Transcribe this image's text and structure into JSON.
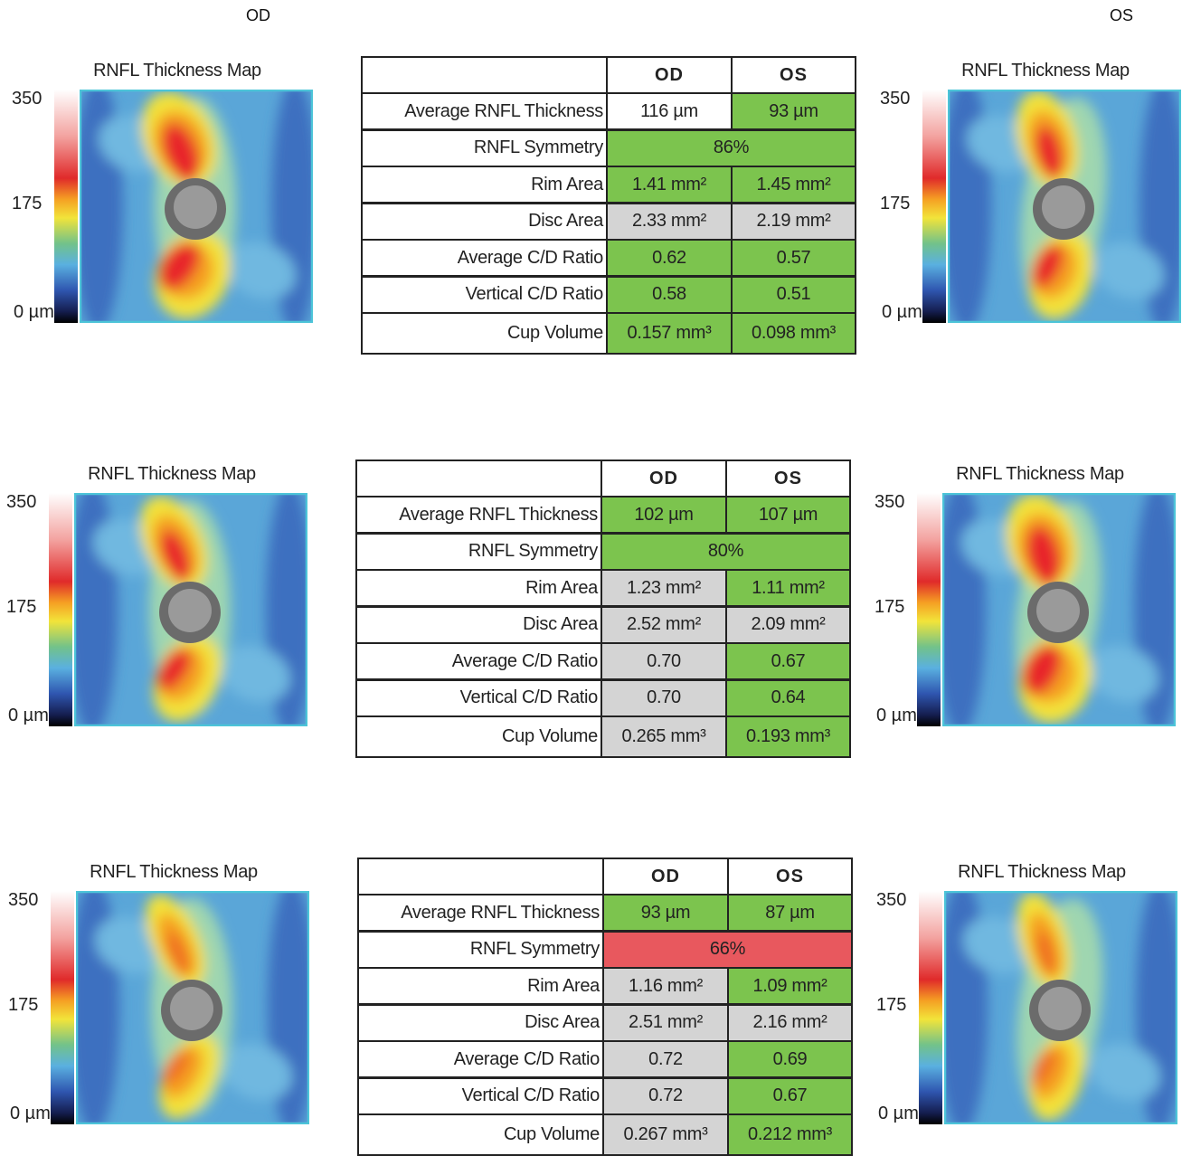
{
  "header": {
    "od": "OD",
    "os": "OS"
  },
  "panels": [
    {
      "left_map": {
        "title": "RNFL Thickness Map",
        "scale": [
          "350",
          "175",
          "0 µm"
        ]
      },
      "right_map": {
        "title": "RNFL Thickness Map",
        "scale": [
          "350",
          "175",
          "0 µm"
        ]
      },
      "table": {
        "columns": [
          "OD",
          "OS"
        ],
        "rows": [
          {
            "label": "Average RNFL Thickness",
            "od": "116 µm",
            "os": "93 µm",
            "od_color": "#ffffff",
            "os_color": "#7cc44e"
          },
          {
            "label": "RNFL Symmetry",
            "value": "86%",
            "color": "#7cc44e"
          },
          {
            "label": "Rim Area",
            "od": "1.41 mm²",
            "os": "1.45 mm²",
            "od_color": "#7cc44e",
            "os_color": "#7cc44e"
          },
          {
            "label": "Disc Area",
            "od": "2.33 mm²",
            "os": "2.19 mm²",
            "od_color": "#d4d4d4",
            "os_color": "#d4d4d4"
          },
          {
            "label": "Average C/D Ratio",
            "od": "0.62",
            "os": "0.57",
            "od_color": "#7cc44e",
            "os_color": "#7cc44e"
          },
          {
            "label": "Vertical C/D Ratio",
            "od": "0.58",
            "os": "0.51",
            "od_color": "#7cc44e",
            "os_color": "#7cc44e"
          },
          {
            "label": "Cup Volume",
            "od": "0.157 mm³",
            "os": "0.098 mm³",
            "od_color": "#7cc44e",
            "os_color": "#7cc44e"
          }
        ]
      }
    },
    {
      "left_map": {
        "title": "RNFL Thickness Map",
        "scale": [
          "350",
          "175",
          "0 µm"
        ]
      },
      "right_map": {
        "title": "RNFL Thickness Map",
        "scale": [
          "350",
          "175",
          "0 µm"
        ]
      },
      "table": {
        "columns": [
          "OD",
          "OS"
        ],
        "rows": [
          {
            "label": "Average RNFL Thickness",
            "od": "102 µm",
            "os": "107 µm",
            "od_color": "#7cc44e",
            "os_color": "#7cc44e"
          },
          {
            "label": "RNFL Symmetry",
            "value": "80%",
            "color": "#7cc44e"
          },
          {
            "label": "Rim Area",
            "od": "1.23 mm²",
            "os": "1.11 mm²",
            "od_color": "#d4d4d4",
            "os_color": "#7cc44e"
          },
          {
            "label": "Disc Area",
            "od": "2.52 mm²",
            "os": "2.09 mm²",
            "od_color": "#d4d4d4",
            "os_color": "#d4d4d4"
          },
          {
            "label": "Average C/D Ratio",
            "od": "0.70",
            "os": "0.67",
            "od_color": "#d4d4d4",
            "os_color": "#7cc44e"
          },
          {
            "label": "Vertical C/D Ratio",
            "od": "0.70",
            "os": "0.64",
            "od_color": "#d4d4d4",
            "os_color": "#7cc44e"
          },
          {
            "label": "Cup Volume",
            "od": "0.265 mm³",
            "os": "0.193 mm³",
            "od_color": "#d4d4d4",
            "os_color": "#7cc44e"
          }
        ]
      }
    },
    {
      "left_map": {
        "title": "RNFL Thickness Map",
        "scale": [
          "350",
          "175",
          "0 µm"
        ]
      },
      "right_map": {
        "title": "RNFL Thickness Map",
        "scale": [
          "350",
          "175",
          "0 µm"
        ]
      },
      "table": {
        "columns": [
          "OD",
          "OS"
        ],
        "rows": [
          {
            "label": "Average RNFL Thickness",
            "od": "93 µm",
            "os": "87 µm",
            "od_color": "#7cc44e",
            "os_color": "#7cc44e"
          },
          {
            "label": "RNFL Symmetry",
            "value": "66%",
            "color": "#e8585e"
          },
          {
            "label": "Rim Area",
            "od": "1.16 mm²",
            "os": "1.09 mm²",
            "od_color": "#d4d4d4",
            "os_color": "#7cc44e"
          },
          {
            "label": "Disc Area",
            "od": "2.51 mm²",
            "os": "2.16 mm²",
            "od_color": "#d4d4d4",
            "os_color": "#d4d4d4"
          },
          {
            "label": "Average C/D Ratio",
            "od": "0.72",
            "os": "0.69",
            "od_color": "#d4d4d4",
            "os_color": "#7cc44e"
          },
          {
            "label": "Vertical C/D Ratio",
            "od": "0.72",
            "os": "0.67",
            "od_color": "#d4d4d4",
            "os_color": "#7cc44e"
          },
          {
            "label": "Cup Volume",
            "od": "0.267 mm³",
            "os": "0.212 mm³",
            "od_color": "#d4d4d4",
            "os_color": "#7cc44e"
          }
        ]
      }
    }
  ]
}
